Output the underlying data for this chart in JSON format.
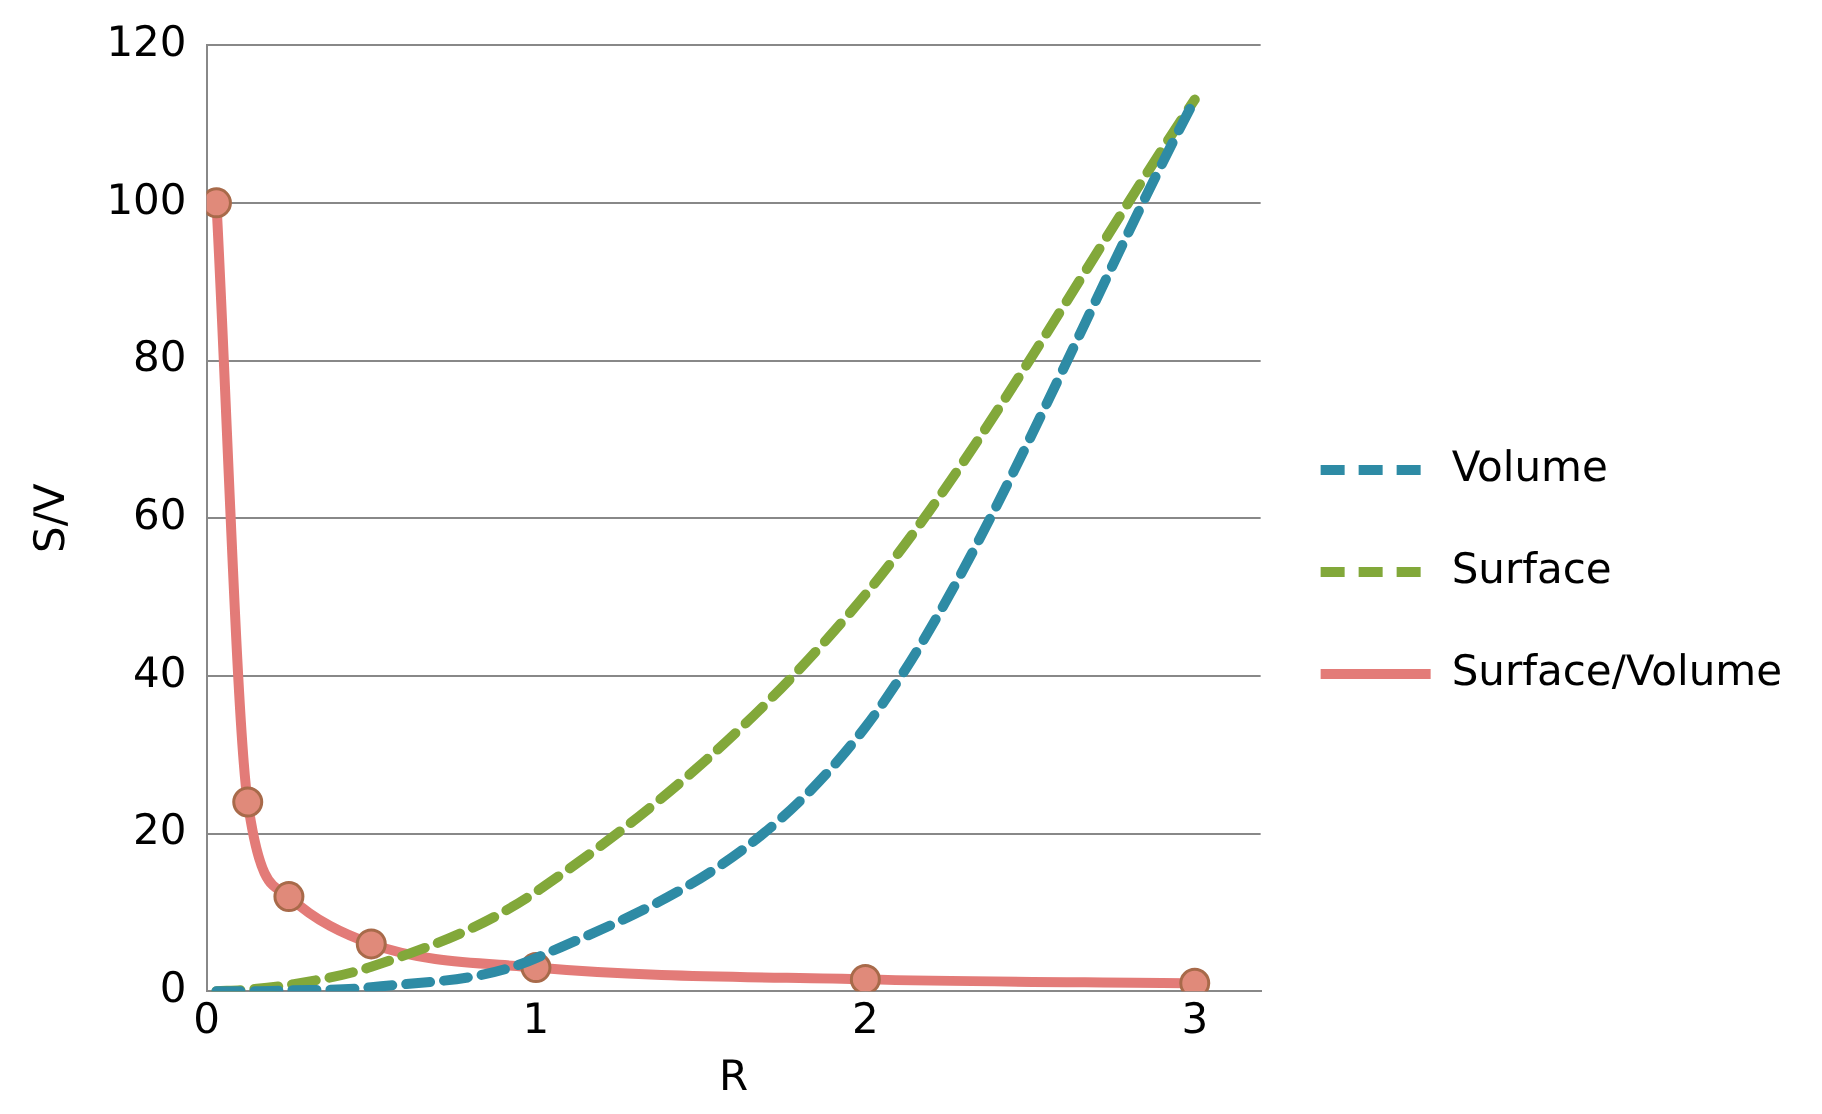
{
  "chart_data": {
    "type": "line",
    "xlabel": "R",
    "ylabel": "S/V",
    "x": [
      0.03,
      0.125,
      0.25,
      0.5,
      1,
      2,
      3
    ],
    "series": [
      {
        "name": "Volume",
        "color": "#2e8ba5",
        "values": [
          0,
          0,
          0.1,
          0.5,
          4.2,
          33.5,
          113.1
        ],
        "marker": "none",
        "line_style": "dashed"
      },
      {
        "name": "Surface",
        "color": "#82a83a",
        "values": [
          0,
          0.2,
          0.8,
          3.1,
          12.6,
          50.3,
          113.1
        ],
        "marker": "none",
        "line_style": "dashed"
      },
      {
        "name": "Surface/Volume",
        "color": "#e37b78",
        "values": [
          100,
          24,
          12,
          6,
          3,
          1.5,
          1
        ],
        "marker": "circle",
        "line_style": "solid"
      }
    ],
    "xlim": [
      0,
      3.2
    ],
    "xticks": [
      0,
      1,
      2,
      3
    ],
    "ylim": [
      0,
      120
    ],
    "yticks": [
      0,
      20,
      40,
      60,
      80,
      100,
      120
    ],
    "grid": "y",
    "legend": "right"
  }
}
